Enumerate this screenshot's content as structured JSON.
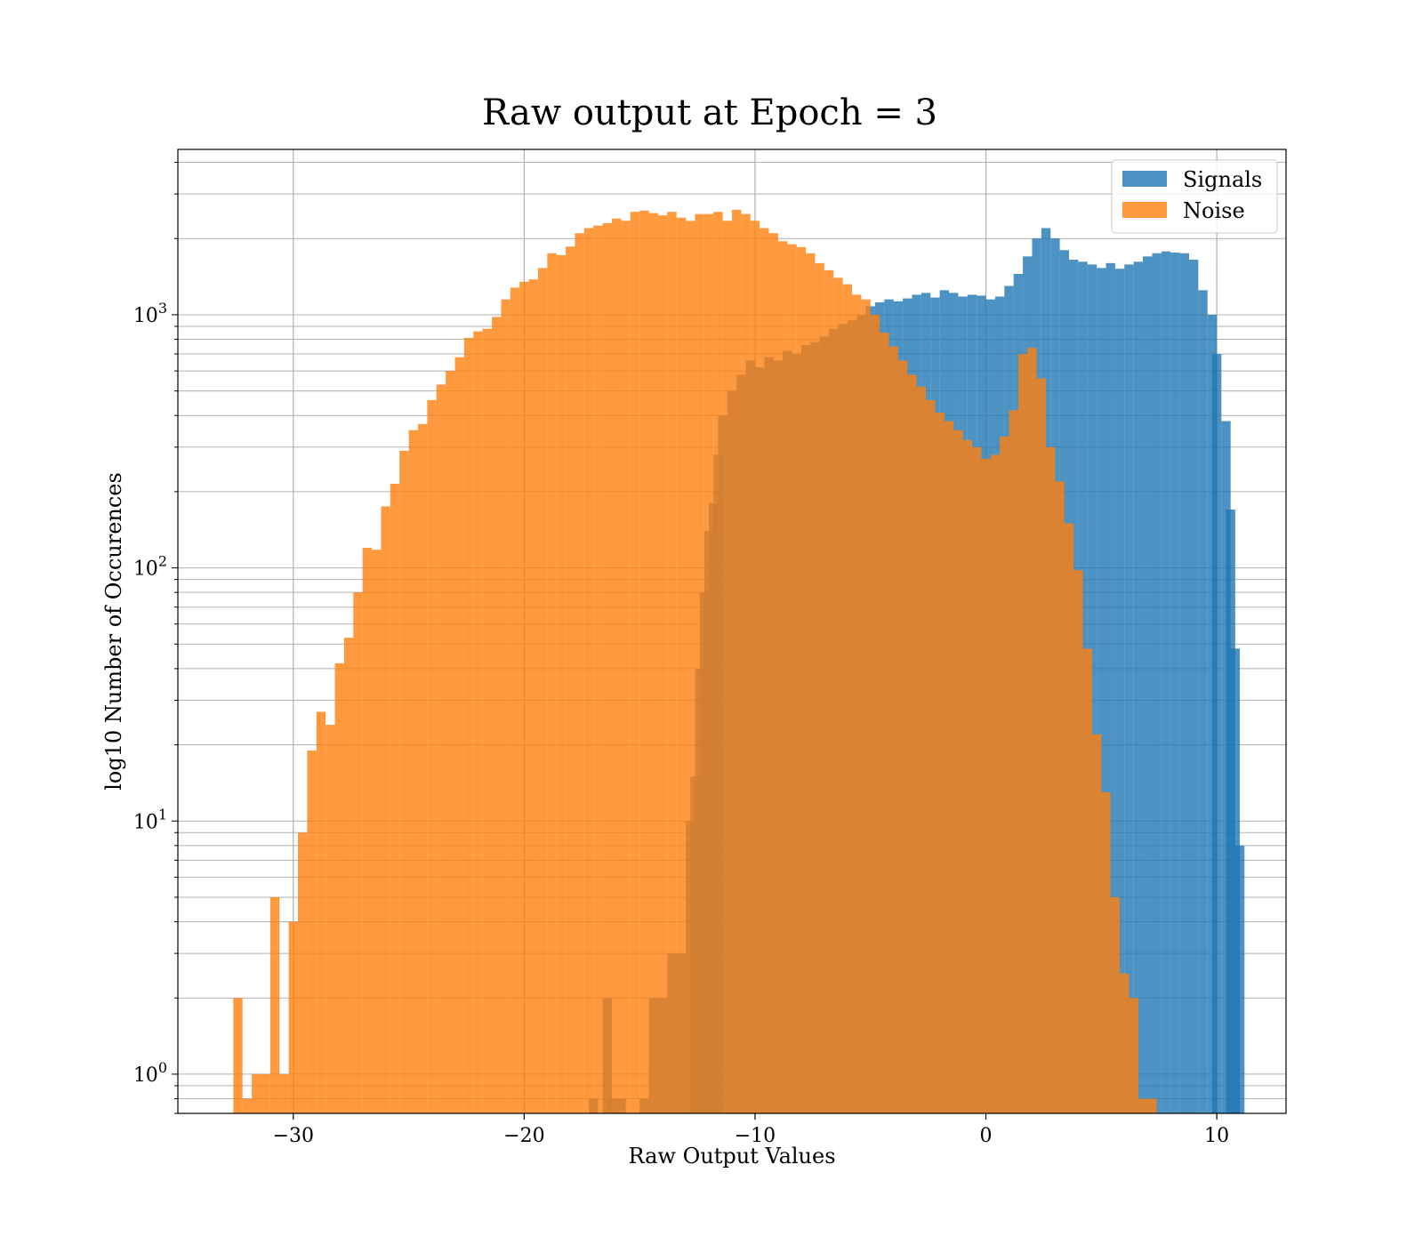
{
  "chart_data": {
    "type": "histogram",
    "title": "Raw output at Epoch = 3",
    "xlabel": "Raw Output Values",
    "ylabel": "log10 Number of Occurences",
    "xlim": [
      -35,
      13
    ],
    "ylim": [
      0.7,
      4500
    ],
    "yscale": "log",
    "grid": true,
    "legend_position": "top-right",
    "x_ticks": [
      -30,
      -20,
      -10,
      0,
      10
    ],
    "x_tick_labels": [
      "−30",
      "−20",
      "−10",
      "0",
      "10"
    ],
    "y_ticks": [
      1,
      10,
      100,
      1000
    ],
    "y_tick_labels": [
      {
        "base": "10",
        "exp": "0"
      },
      {
        "base": "10",
        "exp": "1"
      },
      {
        "base": "10",
        "exp": "2"
      },
      {
        "base": "10",
        "exp": "3"
      }
    ],
    "bin_width": 0.4,
    "series": [
      {
        "name": "Signals",
        "color": "#1f77b4",
        "alpha": 0.8,
        "bins": [
          [
            -17.2,
            0.8
          ],
          [
            -16.6,
            2
          ],
          [
            -16.4,
            0.8
          ],
          [
            -16.0,
            0.8
          ],
          [
            -15.0,
            0.8
          ],
          [
            -14.6,
            2
          ],
          [
            -14.2,
            2
          ],
          [
            -13.8,
            3
          ],
          [
            -13.4,
            3
          ],
          [
            -13.0,
            10
          ],
          [
            -12.8,
            15
          ],
          [
            -12.6,
            40
          ],
          [
            -12.4,
            80
          ],
          [
            -12.2,
            140
          ],
          [
            -12.0,
            180
          ],
          [
            -11.8,
            280
          ],
          [
            -11.6,
            400
          ],
          [
            -11.2,
            500
          ],
          [
            -10.8,
            580
          ],
          [
            -10.4,
            660
          ],
          [
            -10.0,
            620
          ],
          [
            -9.6,
            680
          ],
          [
            -9.2,
            660
          ],
          [
            -8.8,
            720
          ],
          [
            -8.4,
            700
          ],
          [
            -8.0,
            760
          ],
          [
            -7.6,
            780
          ],
          [
            -7.2,
            820
          ],
          [
            -6.8,
            880
          ],
          [
            -6.4,
            920
          ],
          [
            -6.0,
            950
          ],
          [
            -5.6,
            1000
          ],
          [
            -5.2,
            1080
          ],
          [
            -4.8,
            1120
          ],
          [
            -4.4,
            1150
          ],
          [
            -4.0,
            1130
          ],
          [
            -3.6,
            1160
          ],
          [
            -3.2,
            1200
          ],
          [
            -2.8,
            1220
          ],
          [
            -2.4,
            1170
          ],
          [
            -2.0,
            1250
          ],
          [
            -1.6,
            1220
          ],
          [
            -1.2,
            1180
          ],
          [
            -0.8,
            1200
          ],
          [
            -0.4,
            1190
          ],
          [
            0.0,
            1150
          ],
          [
            0.4,
            1180
          ],
          [
            0.8,
            1300
          ],
          [
            1.2,
            1450
          ],
          [
            1.6,
            1700
          ],
          [
            2.0,
            2000
          ],
          [
            2.4,
            2200
          ],
          [
            2.8,
            2000
          ],
          [
            3.2,
            1800
          ],
          [
            3.6,
            1650
          ],
          [
            4.0,
            1620
          ],
          [
            4.4,
            1580
          ],
          [
            4.8,
            1530
          ],
          [
            5.2,
            1600
          ],
          [
            5.6,
            1520
          ],
          [
            6.0,
            1580
          ],
          [
            6.4,
            1620
          ],
          [
            6.8,
            1700
          ],
          [
            7.2,
            1750
          ],
          [
            7.6,
            1780
          ],
          [
            8.0,
            1760
          ],
          [
            8.4,
            1750
          ],
          [
            8.8,
            1650
          ],
          [
            9.2,
            1250
          ],
          [
            9.6,
            1000
          ],
          [
            9.8,
            700
          ],
          [
            10.2,
            380
          ],
          [
            10.4,
            170
          ],
          [
            10.6,
            48
          ],
          [
            10.8,
            8
          ]
        ]
      },
      {
        "name": "Noise",
        "color": "#ff7f0e",
        "alpha": 0.8,
        "bins": [
          [
            -32.6,
            2
          ],
          [
            -32.2,
            0.8
          ],
          [
            -31.8,
            1
          ],
          [
            -31.4,
            1
          ],
          [
            -31.0,
            5
          ],
          [
            -30.6,
            1
          ],
          [
            -30.2,
            4
          ],
          [
            -29.8,
            9
          ],
          [
            -29.4,
            19
          ],
          [
            -29.0,
            27
          ],
          [
            -28.6,
            24
          ],
          [
            -28.2,
            42
          ],
          [
            -27.8,
            53
          ],
          [
            -27.4,
            80
          ],
          [
            -27.0,
            120
          ],
          [
            -26.6,
            118
          ],
          [
            -26.2,
            175
          ],
          [
            -25.8,
            215
          ],
          [
            -25.4,
            290
          ],
          [
            -25.0,
            350
          ],
          [
            -24.6,
            370
          ],
          [
            -24.2,
            460
          ],
          [
            -23.8,
            530
          ],
          [
            -23.4,
            600
          ],
          [
            -23.0,
            680
          ],
          [
            -22.6,
            810
          ],
          [
            -22.2,
            860
          ],
          [
            -21.8,
            880
          ],
          [
            -21.4,
            980
          ],
          [
            -21.0,
            1150
          ],
          [
            -20.6,
            1280
          ],
          [
            -20.2,
            1350
          ],
          [
            -19.8,
            1380
          ],
          [
            -19.4,
            1530
          ],
          [
            -19.0,
            1750
          ],
          [
            -18.6,
            1720
          ],
          [
            -18.2,
            1860
          ],
          [
            -17.8,
            2100
          ],
          [
            -17.4,
            2200
          ],
          [
            -17.0,
            2250
          ],
          [
            -16.6,
            2300
          ],
          [
            -16.2,
            2400
          ],
          [
            -15.8,
            2350
          ],
          [
            -15.4,
            2550
          ],
          [
            -15.0,
            2580
          ],
          [
            -14.6,
            2520
          ],
          [
            -14.2,
            2470
          ],
          [
            -13.8,
            2550
          ],
          [
            -13.4,
            2420
          ],
          [
            -13.0,
            2350
          ],
          [
            -12.6,
            2500
          ],
          [
            -12.2,
            2500
          ],
          [
            -11.8,
            2550
          ],
          [
            -11.4,
            2350
          ],
          [
            -11.0,
            2600
          ],
          [
            -10.6,
            2500
          ],
          [
            -10.2,
            2350
          ],
          [
            -9.8,
            2200
          ],
          [
            -9.4,
            2100
          ],
          [
            -9.0,
            1950
          ],
          [
            -8.6,
            1900
          ],
          [
            -8.2,
            1850
          ],
          [
            -7.8,
            1750
          ],
          [
            -7.4,
            1600
          ],
          [
            -7.0,
            1500
          ],
          [
            -6.6,
            1400
          ],
          [
            -6.2,
            1320
          ],
          [
            -5.8,
            1200
          ],
          [
            -5.4,
            1150
          ],
          [
            -5.0,
            1000
          ],
          [
            -4.6,
            850
          ],
          [
            -4.2,
            750
          ],
          [
            -3.8,
            660
          ],
          [
            -3.4,
            580
          ],
          [
            -3.0,
            520
          ],
          [
            -2.6,
            460
          ],
          [
            -2.2,
            410
          ],
          [
            -1.8,
            380
          ],
          [
            -1.4,
            350
          ],
          [
            -1.0,
            320
          ],
          [
            -0.6,
            300
          ],
          [
            -0.2,
            270
          ],
          [
            0.2,
            280
          ],
          [
            0.6,
            330
          ],
          [
            1.0,
            420
          ],
          [
            1.4,
            700
          ],
          [
            1.8,
            740
          ],
          [
            2.2,
            560
          ],
          [
            2.6,
            300
          ],
          [
            3.0,
            220
          ],
          [
            3.4,
            150
          ],
          [
            3.8,
            98
          ],
          [
            4.2,
            48
          ],
          [
            4.6,
            22
          ],
          [
            5.0,
            13
          ],
          [
            5.4,
            5
          ],
          [
            5.8,
            2.5
          ],
          [
            6.2,
            2
          ],
          [
            6.6,
            0.8
          ],
          [
            7.0,
            0.8
          ]
        ]
      }
    ]
  }
}
